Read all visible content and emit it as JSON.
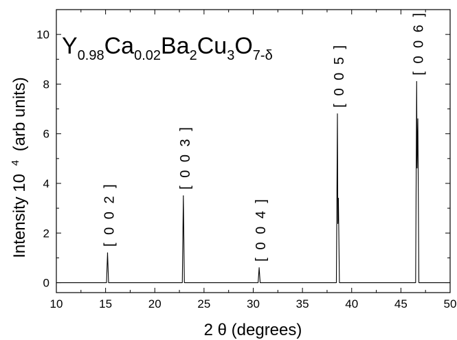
{
  "chart_data": {
    "type": "line",
    "title_parts": [
      {
        "text": "Y",
        "sub": false
      },
      {
        "text": "0.98",
        "sub": true
      },
      {
        "text": "Ca",
        "sub": false
      },
      {
        "text": "0.02",
        "sub": true
      },
      {
        "text": "Ba",
        "sub": false
      },
      {
        "text": "2",
        "sub": true
      },
      {
        "text": "Cu",
        "sub": false
      },
      {
        "text": "3",
        "sub": true
      },
      {
        "text": "O",
        "sub": false
      },
      {
        "text": "7-δ",
        "sub": true
      }
    ],
    "xlabel": "2 θ (degrees)",
    "ylabel": "Intensity 10",
    "ylabel_sup": "4",
    "ylabel_unit": "(arb units)",
    "xlim": [
      10,
      50
    ],
    "ylim": [
      -0.4,
      11
    ],
    "x_ticks": [
      10,
      15,
      20,
      25,
      30,
      35,
      40,
      45,
      50
    ],
    "x_tick_labels": [
      "10",
      "15",
      "20",
      "25",
      "30",
      "35",
      "40",
      "45",
      "50"
    ],
    "y_ticks": [
      0,
      2,
      4,
      6,
      8,
      10
    ],
    "y_tick_labels": [
      "0",
      "2",
      "4",
      "6",
      "8",
      "10"
    ],
    "grid": false,
    "baseline": 0,
    "peaks": [
      {
        "label": "[ 0 0 2 ]",
        "x": 15.2,
        "y": 1.2
      },
      {
        "label": "[ 0 0 3 ]",
        "x": 22.9,
        "y": 3.5
      },
      {
        "label": "[ 0 0 4 ]",
        "x": 30.6,
        "y": 0.6
      },
      {
        "label": "[ 0 0 5 ]",
        "x": 38.55,
        "y": 6.8,
        "shoulder": {
          "x": 38.65,
          "y": 3.4
        }
      },
      {
        "label": "[ 0 0 6 ]",
        "x": 46.6,
        "y": 8.1,
        "shoulder": {
          "x": 46.72,
          "y": 6.6
        }
      }
    ]
  }
}
